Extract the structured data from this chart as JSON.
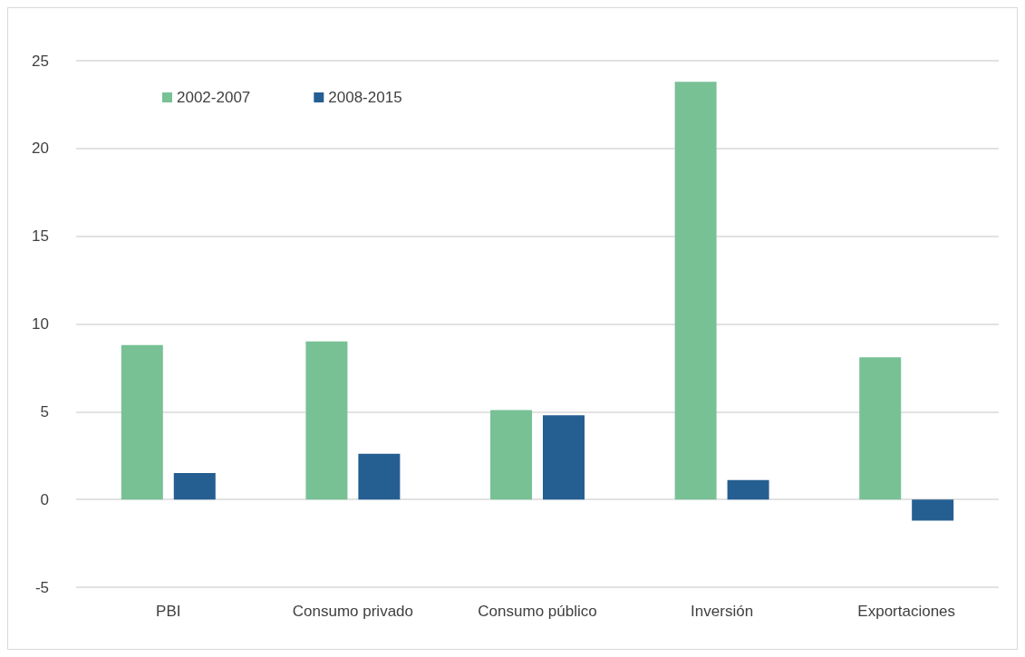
{
  "chart_data": {
    "type": "bar",
    "categories": [
      "PBI",
      "Consumo privado",
      "Consumo público",
      "Inversión",
      "Exportaciones"
    ],
    "series": [
      {
        "name": "2002-2007",
        "color": "#78c195",
        "values": [
          8.8,
          9.0,
          5.1,
          23.8,
          8.1
        ]
      },
      {
        "name": "2008-2015",
        "color": "#255e91",
        "values": [
          1.5,
          2.6,
          4.8,
          1.1,
          -1.2
        ]
      }
    ],
    "ylim": [
      -5,
      25
    ],
    "yticks": [
      -5,
      0,
      5,
      10,
      15,
      20,
      25
    ],
    "grid": "y",
    "legend": "top left"
  }
}
